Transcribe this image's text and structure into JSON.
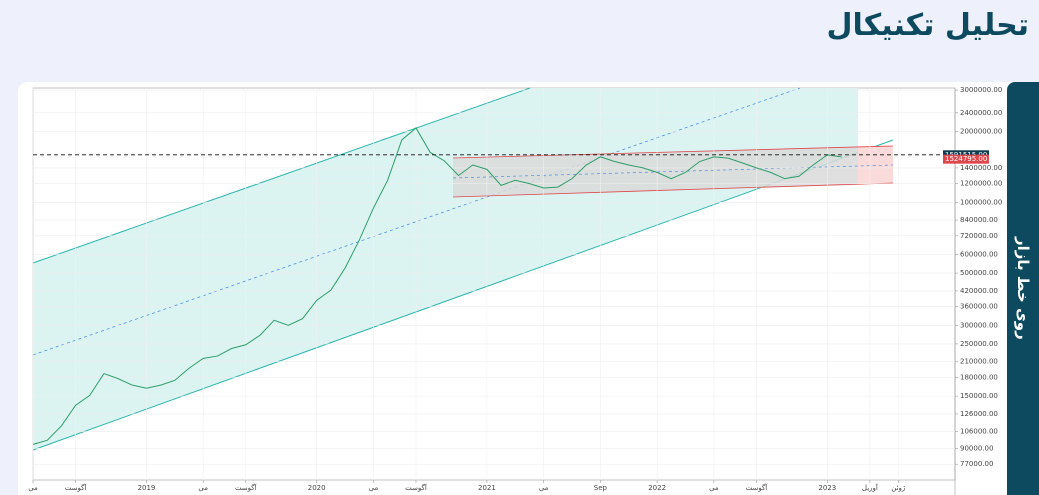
{
  "header": {
    "title": "تحلیل تکنیکال"
  },
  "side_tab": {
    "label": "روی خط بازار"
  },
  "chart_data": {
    "type": "line",
    "log_scale": true,
    "grid": true,
    "x": [
      "2018-05",
      "2018-06",
      "2018-07",
      "2018-08",
      "2018-09",
      "2018-10",
      "2018-11",
      "2018-12",
      "2019-01",
      "2019-02",
      "2019-03",
      "2019-04",
      "2019-05",
      "2019-06",
      "2019-07",
      "2019-08",
      "2019-09",
      "2019-10",
      "2019-11",
      "2019-12",
      "2020-01",
      "2020-02",
      "2020-03",
      "2020-04",
      "2020-05",
      "2020-06",
      "2020-07",
      "2020-08",
      "2020-09",
      "2020-10",
      "2020-11",
      "2020-12",
      "2021-01",
      "2021-02",
      "2021-03",
      "2021-04",
      "2021-05",
      "2021-06",
      "2021-07",
      "2021-08",
      "2021-09",
      "2021-10",
      "2021-11",
      "2021-12",
      "2022-01",
      "2022-02",
      "2022-03",
      "2022-04",
      "2022-05",
      "2022-06",
      "2022-07",
      "2022-08",
      "2022-09",
      "2022-10",
      "2022-11",
      "2022-12",
      "2023-01",
      "2023-02"
    ],
    "series": [
      {
        "color": "#2e9e6a",
        "values": [
          93500,
          97300,
          112000,
          137000,
          151000,
          187000,
          178000,
          167000,
          162000,
          167000,
          175000,
          197000,
          217000,
          222000,
          239000,
          248000,
          272000,
          315000,
          300000,
          320000,
          383000,
          423000,
          525000,
          690000,
          945000,
          1240000,
          1840000,
          2070000,
          1630000,
          1500000,
          1300000,
          1440000,
          1380000,
          1180000,
          1240000,
          1200000,
          1150000,
          1160000,
          1260000,
          1440000,
          1560000,
          1490000,
          1440000,
          1400000,
          1340000,
          1260000,
          1340000,
          1490000,
          1560000,
          1540000,
          1470000,
          1400000,
          1340000,
          1260000,
          1290000,
          1440000,
          1590000,
          1560000
        ]
      }
    ],
    "xlim": [
      "2018-05",
      "2023-10"
    ],
    "xticks": [
      {
        "value": "2018-05",
        "label": "می"
      },
      {
        "value": "2018-08",
        "label": "آگوست"
      },
      {
        "value": "2019-01",
        "label": "2019"
      },
      {
        "value": "2019-05",
        "label": "می"
      },
      {
        "value": "2019-08",
        "label": "آگوست"
      },
      {
        "value": "2020-01",
        "label": "2020"
      },
      {
        "value": "2020-05",
        "label": "می"
      },
      {
        "value": "2020-08",
        "label": "آگوست"
      },
      {
        "value": "2021-01",
        "label": "2021"
      },
      {
        "value": "2021-05",
        "label": "می"
      },
      {
        "value": "2021-09",
        "label": "Sep"
      },
      {
        "value": "2022-01",
        "label": "2022"
      },
      {
        "value": "2022-05",
        "label": "می"
      },
      {
        "value": "2022-08",
        "label": "آگوست"
      },
      {
        "value": "2023-01",
        "label": "2023"
      },
      {
        "value": "2023-04",
        "label": "آوریل"
      },
      {
        "value": "2023-06",
        "label": "ژوئن"
      }
    ],
    "ylim": [
      66000,
      3060000
    ],
    "yticks": [
      {
        "value": 3000000,
        "label": "3000000.00"
      },
      {
        "value": 2400000,
        "label": "2400000.00"
      },
      {
        "value": 2000000,
        "label": "2000000.00"
      },
      {
        "value": 1400000,
        "label": "1400000.00"
      },
      {
        "value": 1200000,
        "label": "1200000.00"
      },
      {
        "value": 1000000,
        "label": "1000000.00"
      },
      {
        "value": 840000,
        "label": "840000.00"
      },
      {
        "value": 720000,
        "label": "720000.00"
      },
      {
        "value": 600000,
        "label": "600000.00"
      },
      {
        "value": 500000,
        "label": "500000.00"
      },
      {
        "value": 420000,
        "label": "420000.00"
      },
      {
        "value": 360000,
        "label": "360000.00"
      },
      {
        "value": 300000,
        "label": "300000.00"
      },
      {
        "value": 250000,
        "label": "250000.00"
      },
      {
        "value": 210000,
        "label": "210000.00"
      },
      {
        "value": 180000,
        "label": "180000.00"
      },
      {
        "value": 150000,
        "label": "150000.00"
      },
      {
        "value": 126000,
        "label": "126000.00"
      },
      {
        "value": 106000,
        "label": "106000.00"
      },
      {
        "value": 90000,
        "label": "90000.00"
      },
      {
        "value": 77000,
        "label": "77000.00"
      }
    ],
    "price_labels": [
      {
        "value": 1591515,
        "label": "1591515.00",
        "color": "#0d3b4f"
      },
      {
        "value": 1524795,
        "label": "1524795.00",
        "color": "#e0474c"
      }
    ]
  }
}
